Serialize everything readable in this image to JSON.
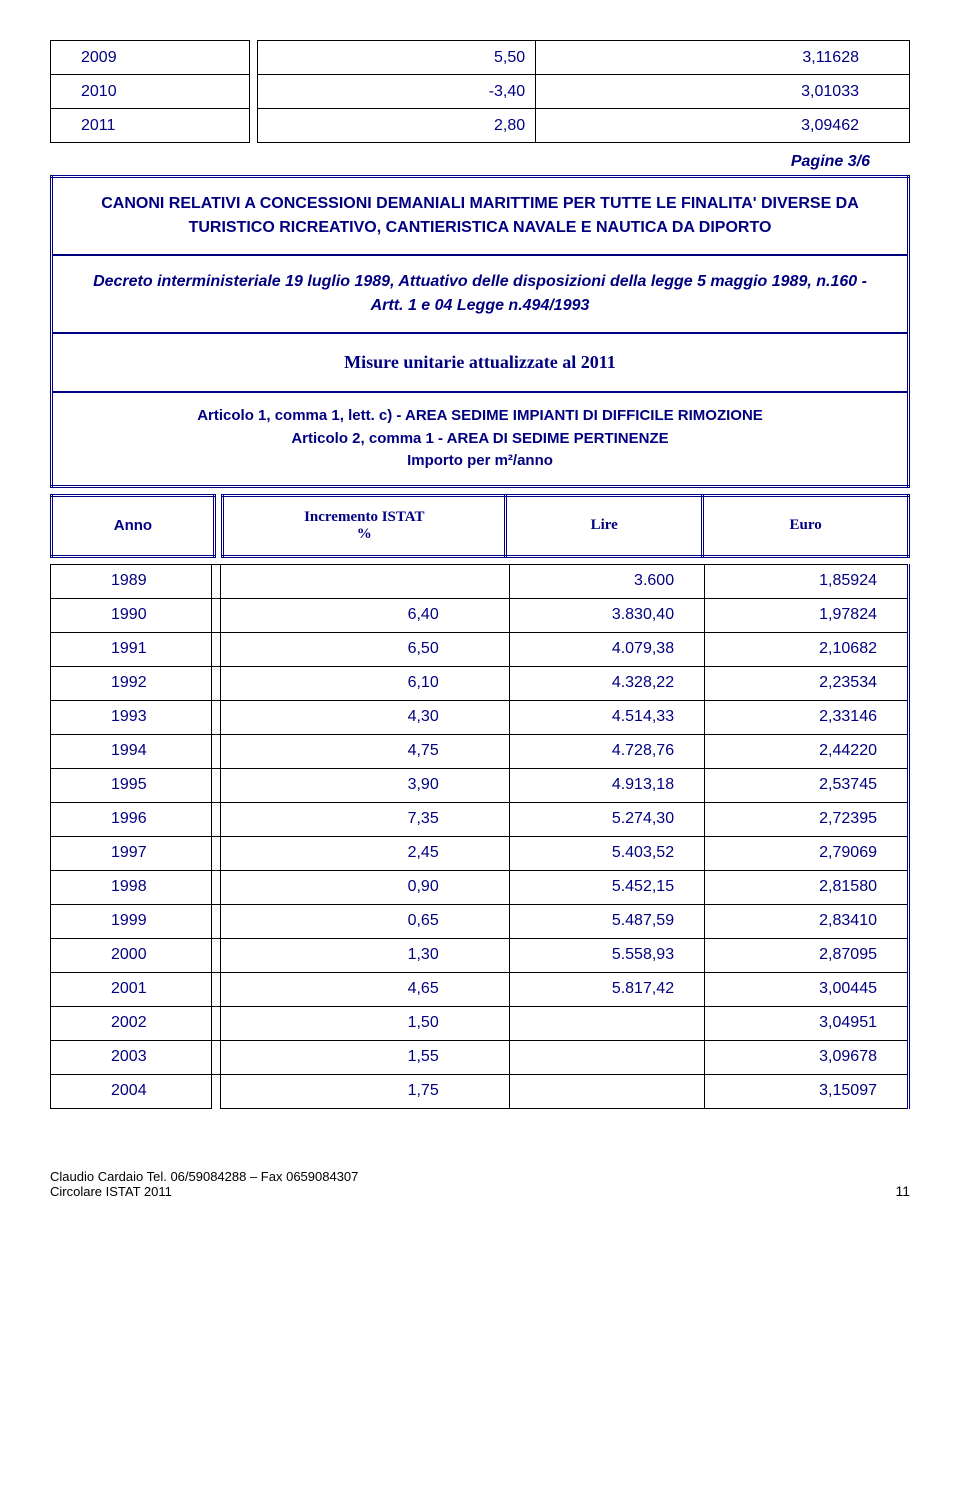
{
  "top_rows": [
    {
      "year": "2009",
      "inc": "5,50",
      "val": "3,11628"
    },
    {
      "year": "2010",
      "inc": "-3,40",
      "val": "3,01033"
    },
    {
      "year": "2011",
      "inc": "2,80",
      "val": "3,09462"
    }
  ],
  "page_label": "Pagine 3/6",
  "box": {
    "title": "CANONI RELATIVI A CONCESSIONI DEMANIALI MARITTIME PER TUTTE LE FINALITA' DIVERSE DA TURISTICO RICREATIVO, CANTIERISTICA NAVALE E NAUTICA DA DIPORTO",
    "decree": "Decreto interministeriale 19 luglio 1989, Attuativo delle disposizioni della legge 5 maggio 1989, n.160 - Artt. 1 e 04 Legge n.494/1993",
    "measure": "Misure unitarie attualizzate al 2011",
    "article_l1": "Articolo 1, comma 1, lett. c) - AREA SEDIME IMPIANTI DI DIFFICILE RIMOZIONE",
    "article_l2": "Articolo 2, comma 1 - AREA DI SEDIME PERTINENZE",
    "article_l3": "Importo per m²/anno"
  },
  "headers": {
    "anno": "Anno",
    "inc_l1": "Incremento ISTAT",
    "inc_l2": "%",
    "lire": "Lire",
    "euro": "Euro"
  },
  "data_rows": [
    {
      "year": "1989",
      "inc": "",
      "lire": "3.600",
      "euro": "1,85924"
    },
    {
      "year": "1990",
      "inc": "6,40",
      "lire": "3.830,40",
      "euro": "1,97824"
    },
    {
      "year": "1991",
      "inc": "6,50",
      "lire": "4.079,38",
      "euro": "2,10682"
    },
    {
      "year": "1992",
      "inc": "6,10",
      "lire": "4.328,22",
      "euro": "2,23534"
    },
    {
      "year": "1993",
      "inc": "4,30",
      "lire": "4.514,33",
      "euro": "2,33146"
    },
    {
      "year": "1994",
      "inc": "4,75",
      "lire": "4.728,76",
      "euro": "2,44220"
    },
    {
      "year": "1995",
      "inc": "3,90",
      "lire": "4.913,18",
      "euro": "2,53745"
    },
    {
      "year": "1996",
      "inc": "7,35",
      "lire": "5.274,30",
      "euro": "2,72395"
    },
    {
      "year": "1997",
      "inc": "2,45",
      "lire": "5.403,52",
      "euro": "2,79069"
    },
    {
      "year": "1998",
      "inc": "0,90",
      "lire": "5.452,15",
      "euro": "2,81580"
    },
    {
      "year": "1999",
      "inc": "0,65",
      "lire": "5.487,59",
      "euro": "2,83410"
    },
    {
      "year": "2000",
      "inc": "1,30",
      "lire": "5.558,93",
      "euro": "2,87095"
    },
    {
      "year": "2001",
      "inc": "4,65",
      "lire": "5.817,42",
      "euro": "3,00445"
    },
    {
      "year": "2002",
      "inc": "1,50",
      "lire": "",
      "euro": "3,04951"
    },
    {
      "year": "2003",
      "inc": "1,55",
      "lire": "",
      "euro": "3,09678"
    },
    {
      "year": "2004",
      "inc": "1,75",
      "lire": "",
      "euro": "3,15097"
    }
  ],
  "footer": {
    "line1": "Claudio Cardaio Tel. 06/59084288 – Fax 0659084307",
    "line2": "Circolare ISTAT 2011",
    "page": "11"
  },
  "colors": {
    "navy": "#000080",
    "black": "#000000",
    "bg": "#ffffff"
  }
}
